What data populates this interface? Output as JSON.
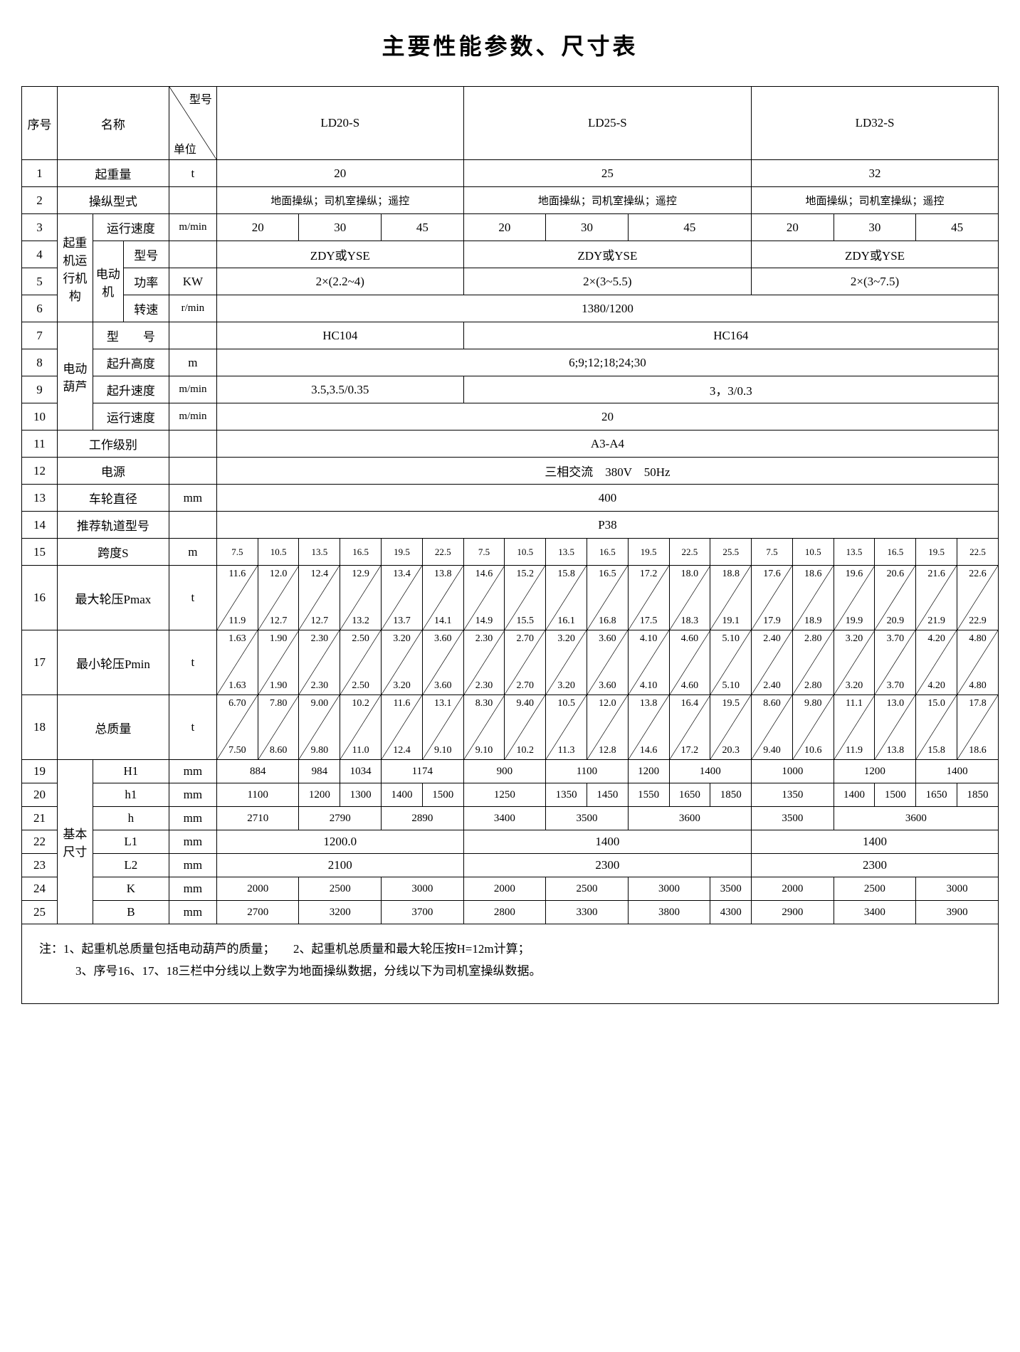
{
  "title": "主要性能参数、尺寸表",
  "header": {
    "seq": "序号",
    "name": "名称",
    "model": "型号",
    "unit": "单位",
    "models": [
      "LD20-S",
      "LD25-S",
      "LD32-S"
    ]
  },
  "rows": {
    "r1": {
      "no": "1",
      "name": "起重量",
      "unit": "t",
      "v": [
        "20",
        "25",
        "32"
      ]
    },
    "r2": {
      "no": "2",
      "name": "操纵型式",
      "v": [
        "地面操纵；司机室操纵；遥控",
        "地面操纵；司机室操纵；遥控",
        "地面操纵；司机室操纵；遥控"
      ]
    },
    "r3": {
      "no": "3",
      "name1": "起重机运行机构",
      "name2": "运行速度",
      "unit": "m/min",
      "v": [
        "20",
        "30",
        "45",
        "20",
        "30",
        "45",
        "20",
        "30",
        "45"
      ]
    },
    "r4": {
      "no": "4",
      "name1": "电动机",
      "name2": "型号",
      "v": [
        "ZDY或YSE",
        "ZDY或YSE",
        "ZDY或YSE"
      ]
    },
    "r5": {
      "no": "5",
      "name2": "功率",
      "unit": "KW",
      "v": [
        "2×(2.2~4)",
        "2×(3~5.5)",
        "2×(3~7.5)"
      ]
    },
    "r6": {
      "no": "6",
      "name2": "转速",
      "unit": "r/min",
      "v": "1380/1200"
    },
    "r7": {
      "no": "7",
      "name1": "电动葫芦",
      "name2": "型　　号",
      "v": [
        "HC104",
        "HC164"
      ]
    },
    "r8": {
      "no": "8",
      "name2": "起升高度",
      "unit": "m",
      "v": "6;9;12;18;24;30"
    },
    "r9": {
      "no": "9",
      "name2": "起升速度",
      "unit": "m/min",
      "v": [
        "3.5,3.5/0.35",
        "3，3/0.3"
      ]
    },
    "r10": {
      "no": "10",
      "name2": "运行速度",
      "unit": "m/min",
      "v": "20"
    },
    "r11": {
      "no": "11",
      "name": "工作级别",
      "v": "A3-A4"
    },
    "r12": {
      "no": "12",
      "name": "电源",
      "v": "三相交流　380V　50Hz"
    },
    "r13": {
      "no": "13",
      "name": "车轮直径",
      "unit": "mm",
      "v": "400"
    },
    "r14": {
      "no": "14",
      "name": "推荐轨道型号",
      "v": "P38"
    },
    "r15": {
      "no": "15",
      "name": "跨度S",
      "unit": "m",
      "v": [
        "7.5",
        "10.5",
        "13.5",
        "16.5",
        "19.5",
        "22.5",
        "7.5",
        "10.5",
        "13.5",
        "16.5",
        "19.5",
        "22.5",
        "25.5",
        "7.5",
        "10.5",
        "13.5",
        "16.5",
        "19.5",
        "22.5"
      ]
    },
    "r16": {
      "no": "16",
      "name": "最大轮压Pmax",
      "unit": "t",
      "top": [
        "11.6",
        "12.0",
        "12.4",
        "12.9",
        "13.4",
        "13.8",
        "14.6",
        "15.2",
        "15.8",
        "16.5",
        "17.2",
        "18.0",
        "18.8",
        "17.6",
        "18.6",
        "19.6",
        "20.6",
        "21.6",
        "22.6"
      ],
      "bot": [
        "11.9",
        "12.7",
        "12.7",
        "13.2",
        "13.7",
        "14.1",
        "14.9",
        "15.5",
        "16.1",
        "16.8",
        "17.5",
        "18.3",
        "19.1",
        "17.9",
        "18.9",
        "19.9",
        "20.9",
        "21.9",
        "22.9"
      ]
    },
    "r17": {
      "no": "17",
      "name": "最小轮压Pmin",
      "unit": "t",
      "top": [
        "1.63",
        "1.90",
        "2.30",
        "2.50",
        "3.20",
        "3.60",
        "2.30",
        "2.70",
        "3.20",
        "3.60",
        "4.10",
        "4.60",
        "5.10",
        "2.40",
        "2.80",
        "3.20",
        "3.70",
        "4.20",
        "4.80"
      ],
      "bot": [
        "1.63",
        "1.90",
        "2.30",
        "2.50",
        "3.20",
        "3.60",
        "2.30",
        "2.70",
        "3.20",
        "3.60",
        "4.10",
        "4.60",
        "5.10",
        "2.40",
        "2.80",
        "3.20",
        "3.70",
        "4.20",
        "4.80"
      ]
    },
    "r18": {
      "no": "18",
      "name": "总质量",
      "unit": "t",
      "top": [
        "6.70",
        "7.80",
        "9.00",
        "10.2",
        "11.6",
        "13.1",
        "8.30",
        "9.40",
        "10.5",
        "12.0",
        "13.8",
        "16.4",
        "19.5",
        "8.60",
        "9.80",
        "11.1",
        "13.0",
        "15.0",
        "17.8"
      ],
      "bot": [
        "7.50",
        "8.60",
        "9.80",
        "11.0",
        "12.4",
        "9.10",
        "9.10",
        "10.2",
        "11.3",
        "12.8",
        "14.6",
        "17.2",
        "20.3",
        "9.40",
        "10.6",
        "11.9",
        "13.8",
        "15.8",
        "18.6"
      ]
    },
    "r19": {
      "no": "19",
      "name1": "基本尺寸",
      "name2": "H1",
      "unit": "mm"
    },
    "r20": {
      "no": "20",
      "name2": "h1",
      "unit": "mm"
    },
    "r21": {
      "no": "21",
      "name2": "h",
      "unit": "mm"
    },
    "r22": {
      "no": "22",
      "name2": "L1",
      "unit": "mm",
      "v": [
        "1200.0",
        "1400",
        "1400"
      ]
    },
    "r23": {
      "no": "23",
      "name2": "L2",
      "unit": "mm",
      "v": [
        "2100",
        "2300",
        "2300"
      ]
    },
    "r24": {
      "no": "24",
      "name2": "K",
      "unit": "mm",
      "v": [
        "2000",
        "2500",
        "3000",
        "2000",
        "2500",
        "3000",
        "3500",
        "2000",
        "2500",
        "3000"
      ]
    },
    "r25": {
      "no": "25",
      "name2": "B",
      "unit": "mm",
      "v": [
        "2700",
        "3200",
        "3700",
        "2800",
        "3300",
        "3800",
        "4300",
        "2900",
        "3400",
        "3900"
      ]
    },
    "h1_vals": [
      "884",
      "984",
      "1034",
      "1174",
      "900",
      "1100",
      "1200",
      "1400",
      "1000",
      "1200",
      "1400"
    ],
    "h1l_vals": [
      "1100",
      "1200",
      "1300",
      "1400",
      "1500",
      "1250",
      "1350",
      "1450",
      "1550",
      "1650",
      "1850",
      "1350",
      "1400",
      "1500",
      "1650",
      "1850"
    ],
    "h_vals": [
      "2710",
      "2790",
      "2890",
      "3400",
      "3500",
      "3600",
      "3500",
      "3600"
    ]
  },
  "notes": {
    "prefix": "注：",
    "n1": "1、起重机总质量包括电动葫芦的质量；",
    "n2": "2、起重机总质量和最大轮压按H=12m计算；",
    "n3": "3、序号16、17、18三栏中分线以上数字为地面操纵数据，分线以下为司机室操纵数据。"
  }
}
